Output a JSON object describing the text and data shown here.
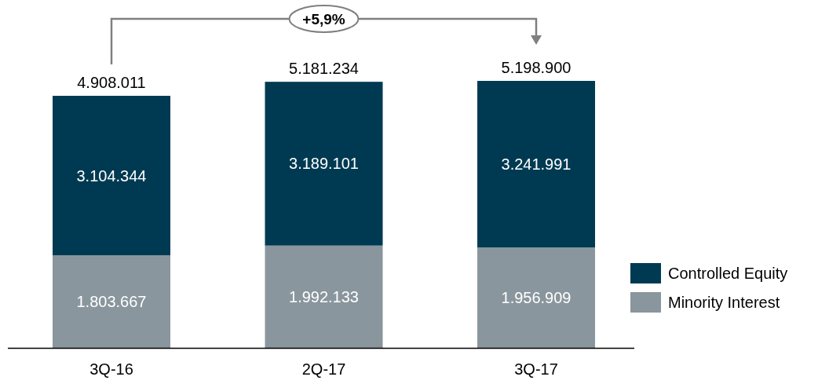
{
  "chart_data": {
    "type": "bar",
    "stacked": true,
    "categories": [
      "3Q-16",
      "2Q-17",
      "3Q-17"
    ],
    "series": [
      {
        "name": "Minority Interest",
        "color": "#8a969e",
        "values": [
          1803667,
          1992133,
          1956909
        ],
        "value_labels": [
          "1.803.667",
          "1.992.133",
          "1.956.909"
        ]
      },
      {
        "name": "Controlled Equity",
        "color": "#003a52",
        "values": [
          3104344,
          3189101,
          3241991
        ],
        "value_labels": [
          "3.104.344",
          "3.189.101",
          "3.241.991"
        ]
      }
    ],
    "totals": [
      "4.908.011",
      "5.181.234",
      "5.198.900"
    ],
    "annotations": [
      "+5,9%"
    ],
    "legend": "right"
  }
}
